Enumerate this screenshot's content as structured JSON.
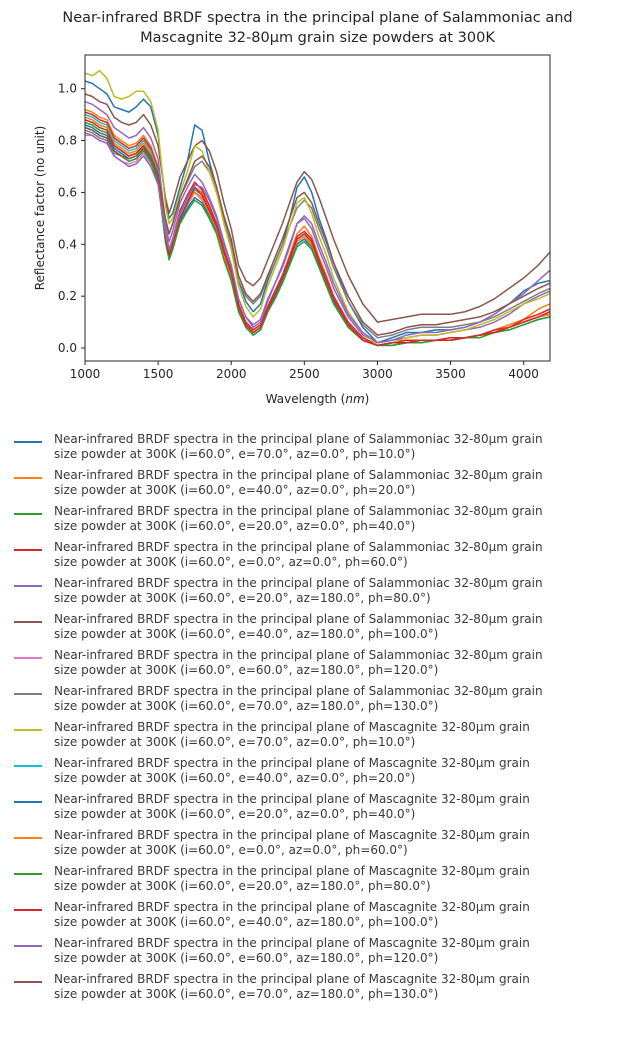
{
  "chart_data": {
    "type": "line",
    "title_lines": [
      "Near-infrared BRDF spectra in the principal plane of Salammoniac and",
      "Mascagnite 32-80µm grain size powders at 300K"
    ],
    "xlabel": "Wavelength",
    "xlabel_unit": "nm",
    "ylabel": "Reflectance factor (no unit)",
    "xlim": [
      1000,
      4180
    ],
    "ylim": [
      -0.05,
      1.13
    ],
    "xticks": [
      "1000",
      "1500",
      "2000",
      "2500",
      "3000",
      "3500",
      "4000"
    ],
    "yticks": [
      "0.0",
      "0.2",
      "0.4",
      "0.6",
      "0.8",
      "1.0"
    ],
    "grid": false,
    "legend_placement": "below",
    "x": [
      1000,
      1050,
      1100,
      1150,
      1200,
      1250,
      1300,
      1350,
      1400,
      1450,
      1500,
      1550,
      1575,
      1600,
      1650,
      1700,
      1750,
      1800,
      1850,
      1900,
      1950,
      2000,
      2050,
      2100,
      2150,
      2200,
      2250,
      2300,
      2350,
      2400,
      2450,
      2500,
      2550,
      2600,
      2650,
      2700,
      2800,
      2900,
      3000,
      3100,
      3200,
      3300,
      3400,
      3500,
      3600,
      3700,
      3800,
      3900,
      4000,
      4100,
      4180
    ],
    "series": [
      {
        "name_lines": [
          "Near-infrared BRDF spectra in the principal plane of Salammoniac 32-80µm grain",
          "size powder at 300K (i=60.0°, e=70.0°, az=0.0°, ph=10.0°)"
        ],
        "color": "#1f77b4",
        "values": [
          1.03,
          1.02,
          1.0,
          0.98,
          0.93,
          0.92,
          0.91,
          0.93,
          0.96,
          0.93,
          0.82,
          0.57,
          0.5,
          0.52,
          0.62,
          0.72,
          0.86,
          0.84,
          0.72,
          0.62,
          0.5,
          0.42,
          0.26,
          0.18,
          0.14,
          0.17,
          0.26,
          0.33,
          0.4,
          0.5,
          0.62,
          0.66,
          0.6,
          0.5,
          0.42,
          0.33,
          0.18,
          0.08,
          0.02,
          0.04,
          0.06,
          0.06,
          0.07,
          0.07,
          0.08,
          0.1,
          0.13,
          0.17,
          0.22,
          0.25,
          0.26
        ]
      },
      {
        "name_lines": [
          "Near-infrared BRDF spectra in the principal plane of Salammoniac 32-80µm grain",
          "size powder at 300K (i=60.0°, e=40.0°, az=0.0°, ph=20.0°)"
        ],
        "color": "#ff7f0e",
        "values": [
          0.92,
          0.91,
          0.89,
          0.88,
          0.82,
          0.8,
          0.78,
          0.79,
          0.82,
          0.78,
          0.7,
          0.45,
          0.38,
          0.42,
          0.52,
          0.58,
          0.62,
          0.6,
          0.54,
          0.48,
          0.38,
          0.3,
          0.17,
          0.1,
          0.07,
          0.09,
          0.16,
          0.22,
          0.28,
          0.36,
          0.44,
          0.47,
          0.43,
          0.35,
          0.28,
          0.2,
          0.1,
          0.04,
          0.01,
          0.02,
          0.03,
          0.03,
          0.03,
          0.04,
          0.04,
          0.05,
          0.07,
          0.09,
          0.11,
          0.15,
          0.17
        ]
      },
      {
        "name_lines": [
          "Near-infrared BRDF spectra in the principal plane of Salammoniac 32-80µm grain",
          "size powder at 300K (i=60.0°, e=20.0°, az=0.0°, ph=40.0°)"
        ],
        "color": "#2ca02c",
        "values": [
          0.87,
          0.86,
          0.84,
          0.83,
          0.78,
          0.76,
          0.74,
          0.75,
          0.78,
          0.74,
          0.66,
          0.42,
          0.36,
          0.4,
          0.5,
          0.56,
          0.6,
          0.58,
          0.52,
          0.46,
          0.36,
          0.28,
          0.16,
          0.09,
          0.06,
          0.08,
          0.15,
          0.21,
          0.27,
          0.34,
          0.41,
          0.43,
          0.4,
          0.33,
          0.26,
          0.19,
          0.09,
          0.03,
          0.01,
          0.02,
          0.02,
          0.03,
          0.03,
          0.03,
          0.04,
          0.05,
          0.06,
          0.08,
          0.1,
          0.12,
          0.13
        ]
      },
      {
        "name_lines": [
          "Near-infrared BRDF spectra in the principal plane of Salammoniac 32-80µm grain",
          "size powder at 300K (i=60.0°, e=0.0°, az=0.0°, ph=60.0°)"
        ],
        "color": "#d62728",
        "values": [
          0.91,
          0.9,
          0.88,
          0.87,
          0.81,
          0.79,
          0.77,
          0.78,
          0.81,
          0.77,
          0.69,
          0.45,
          0.38,
          0.42,
          0.53,
          0.59,
          0.64,
          0.61,
          0.55,
          0.48,
          0.38,
          0.3,
          0.17,
          0.1,
          0.07,
          0.09,
          0.16,
          0.22,
          0.28,
          0.35,
          0.43,
          0.45,
          0.42,
          0.34,
          0.27,
          0.2,
          0.1,
          0.04,
          0.01,
          0.02,
          0.03,
          0.03,
          0.03,
          0.04,
          0.04,
          0.05,
          0.07,
          0.08,
          0.11,
          0.13,
          0.15
        ]
      },
      {
        "name_lines": [
          "Near-infrared BRDF spectra in the principal plane of Salammoniac 32-80µm grain",
          "size powder at 300K (i=60.0°, e=20.0°, az=180.0°, ph=80.0°)"
        ],
        "color": "#9467bd",
        "values": [
          0.95,
          0.94,
          0.92,
          0.9,
          0.85,
          0.83,
          0.81,
          0.82,
          0.85,
          0.81,
          0.73,
          0.48,
          0.41,
          0.45,
          0.56,
          0.62,
          0.67,
          0.64,
          0.58,
          0.51,
          0.41,
          0.32,
          0.19,
          0.12,
          0.08,
          0.1,
          0.18,
          0.25,
          0.31,
          0.39,
          0.48,
          0.5,
          0.46,
          0.38,
          0.31,
          0.23,
          0.12,
          0.05,
          0.02,
          0.03,
          0.04,
          0.05,
          0.05,
          0.06,
          0.07,
          0.08,
          0.1,
          0.13,
          0.17,
          0.2,
          0.22
        ]
      },
      {
        "name_lines": [
          "Near-infrared BRDF spectra in the principal plane of Salammoniac 32-80µm grain",
          "size powder at 300K (i=60.0°, e=40.0°, az=180.0°, ph=100.0°)"
        ],
        "color": "#8c564b",
        "values": [
          0.98,
          0.97,
          0.95,
          0.94,
          0.89,
          0.87,
          0.86,
          0.87,
          0.9,
          0.86,
          0.78,
          0.58,
          0.52,
          0.56,
          0.66,
          0.72,
          0.78,
          0.8,
          0.76,
          0.68,
          0.56,
          0.46,
          0.32,
          0.26,
          0.24,
          0.27,
          0.34,
          0.41,
          0.48,
          0.56,
          0.64,
          0.68,
          0.65,
          0.58,
          0.5,
          0.42,
          0.28,
          0.17,
          0.1,
          0.11,
          0.12,
          0.13,
          0.13,
          0.13,
          0.14,
          0.16,
          0.19,
          0.23,
          0.27,
          0.32,
          0.37
        ]
      },
      {
        "name_lines": [
          "Near-infrared BRDF spectra in the principal plane of Salammoniac 32-80µm grain",
          "size powder at 300K (i=60.0°, e=60.0°, az=180.0°, ph=120.0°)"
        ],
        "color": "#e377c2",
        "values": [
          0.82,
          0.82,
          0.8,
          0.79,
          0.74,
          0.72,
          0.71,
          0.72,
          0.75,
          0.71,
          0.64,
          0.42,
          0.35,
          0.4,
          0.5,
          0.55,
          0.6,
          0.57,
          0.51,
          0.45,
          0.35,
          0.27,
          0.15,
          0.09,
          0.06,
          0.08,
          0.15,
          0.2,
          0.26,
          0.33,
          0.4,
          0.42,
          0.39,
          0.32,
          0.25,
          0.18,
          0.09,
          0.03,
          0.01,
          0.02,
          0.02,
          0.03,
          0.03,
          0.03,
          0.04,
          0.05,
          0.06,
          0.08,
          0.1,
          0.12,
          0.14
        ]
      },
      {
        "name_lines": [
          "Near-infrared BRDF spectra in the principal plane of Salammoniac 32-80µm grain",
          "size powder at 300K (i=60.0°, e=70.0°, az=180.0°, ph=130.0°)"
        ],
        "color": "#7f7f7f",
        "values": [
          0.84,
          0.83,
          0.81,
          0.8,
          0.75,
          0.74,
          0.72,
          0.73,
          0.76,
          0.73,
          0.66,
          0.5,
          0.44,
          0.48,
          0.58,
          0.64,
          0.7,
          0.72,
          0.68,
          0.6,
          0.49,
          0.4,
          0.26,
          0.2,
          0.17,
          0.2,
          0.27,
          0.33,
          0.4,
          0.47,
          0.54,
          0.57,
          0.54,
          0.46,
          0.39,
          0.31,
          0.18,
          0.09,
          0.04,
          0.05,
          0.07,
          0.08,
          0.08,
          0.08,
          0.09,
          0.1,
          0.12,
          0.15,
          0.18,
          0.21,
          0.23
        ]
      },
      {
        "name_lines": [
          "Near-infrared BRDF spectra in the principal plane of Mascagnite 32-80µm grain",
          "size powder at 300K (i=60.0°, e=70.0°, az=0.0°, ph=10.0°)"
        ],
        "color": "#bcbd22",
        "values": [
          1.06,
          1.05,
          1.07,
          1.04,
          0.97,
          0.96,
          0.97,
          0.99,
          0.99,
          0.95,
          0.84,
          0.55,
          0.48,
          0.5,
          0.6,
          0.68,
          0.78,
          0.76,
          0.68,
          0.6,
          0.48,
          0.38,
          0.24,
          0.16,
          0.12,
          0.15,
          0.24,
          0.31,
          0.38,
          0.47,
          0.56,
          0.58,
          0.52,
          0.43,
          0.36,
          0.27,
          0.14,
          0.06,
          0.01,
          0.02,
          0.04,
          0.05,
          0.05,
          0.06,
          0.07,
          0.09,
          0.11,
          0.14,
          0.17,
          0.19,
          0.21
        ]
      },
      {
        "name_lines": [
          "Near-infrared BRDF spectra in the principal plane of Mascagnite 32-80µm grain",
          "size powder at 300K (i=60.0°, e=40.0°, az=0.0°, ph=20.0°)"
        ],
        "color": "#17becf",
        "values": [
          0.9,
          0.89,
          0.87,
          0.86,
          0.8,
          0.78,
          0.76,
          0.77,
          0.8,
          0.76,
          0.68,
          0.44,
          0.37,
          0.41,
          0.51,
          0.57,
          0.61,
          0.59,
          0.53,
          0.47,
          0.37,
          0.29,
          0.16,
          0.09,
          0.06,
          0.08,
          0.15,
          0.21,
          0.27,
          0.34,
          0.42,
          0.44,
          0.41,
          0.33,
          0.26,
          0.19,
          0.09,
          0.03,
          0.01,
          0.02,
          0.02,
          0.03,
          0.03,
          0.03,
          0.04,
          0.05,
          0.06,
          0.08,
          0.1,
          0.12,
          0.13
        ]
      },
      {
        "name_lines": [
          "Near-infrared BRDF spectra in the principal plane of Mascagnite 32-80µm grain",
          "size powder at 300K (i=60.0°, e=20.0°, az=0.0°, ph=40.0°)"
        ],
        "color": "#1f77b4",
        "values": [
          0.86,
          0.85,
          0.83,
          0.82,
          0.77,
          0.75,
          0.73,
          0.74,
          0.77,
          0.73,
          0.65,
          0.42,
          0.35,
          0.39,
          0.49,
          0.54,
          0.58,
          0.56,
          0.51,
          0.45,
          0.35,
          0.27,
          0.15,
          0.08,
          0.05,
          0.07,
          0.14,
          0.2,
          0.26,
          0.33,
          0.4,
          0.42,
          0.39,
          0.32,
          0.25,
          0.18,
          0.08,
          0.03,
          0.01,
          0.01,
          0.02,
          0.02,
          0.03,
          0.03,
          0.04,
          0.05,
          0.06,
          0.07,
          0.09,
          0.11,
          0.12
        ]
      },
      {
        "name_lines": [
          "Near-infrared BRDF spectra in the principal plane of Mascagnite 32-80µm grain",
          "size powder at 300K (i=60.0°, e=0.0°, az=0.0°, ph=60.0°)"
        ],
        "color": "#ff7f0e",
        "values": [
          0.89,
          0.88,
          0.86,
          0.85,
          0.79,
          0.77,
          0.75,
          0.76,
          0.79,
          0.75,
          0.67,
          0.43,
          0.36,
          0.4,
          0.5,
          0.56,
          0.6,
          0.58,
          0.52,
          0.46,
          0.36,
          0.28,
          0.16,
          0.09,
          0.06,
          0.08,
          0.15,
          0.21,
          0.27,
          0.34,
          0.41,
          0.43,
          0.4,
          0.33,
          0.26,
          0.19,
          0.09,
          0.03,
          0.01,
          0.02,
          0.02,
          0.03,
          0.03,
          0.03,
          0.04,
          0.05,
          0.06,
          0.08,
          0.1,
          0.12,
          0.13
        ]
      },
      {
        "name_lines": [
          "Near-infrared BRDF spectra in the principal plane of Mascagnite 32-80µm grain",
          "size powder at 300K (i=60.0°, e=20.0°, az=180.0°, ph=80.0°)"
        ],
        "color": "#2ca02c",
        "values": [
          0.85,
          0.84,
          0.82,
          0.81,
          0.76,
          0.74,
          0.72,
          0.73,
          0.76,
          0.72,
          0.64,
          0.41,
          0.34,
          0.38,
          0.48,
          0.53,
          0.57,
          0.55,
          0.5,
          0.44,
          0.34,
          0.26,
          0.14,
          0.08,
          0.05,
          0.07,
          0.14,
          0.19,
          0.25,
          0.32,
          0.39,
          0.41,
          0.38,
          0.31,
          0.24,
          0.17,
          0.08,
          0.03,
          0.01,
          0.01,
          0.02,
          0.02,
          0.03,
          0.03,
          0.04,
          0.04,
          0.06,
          0.07,
          0.09,
          0.11,
          0.12
        ]
      },
      {
        "name_lines": [
          "Near-infrared BRDF spectra in the principal plane of Mascagnite 32-80µm grain",
          "size powder at 300K (i=60.0°, e=40.0°, az=180.0°, ph=100.0°)"
        ],
        "color": "#d62728",
        "values": [
          0.88,
          0.87,
          0.85,
          0.84,
          0.78,
          0.76,
          0.74,
          0.75,
          0.78,
          0.74,
          0.66,
          0.43,
          0.36,
          0.4,
          0.5,
          0.56,
          0.62,
          0.59,
          0.53,
          0.47,
          0.37,
          0.29,
          0.16,
          0.09,
          0.06,
          0.08,
          0.15,
          0.21,
          0.27,
          0.34,
          0.42,
          0.44,
          0.41,
          0.33,
          0.26,
          0.19,
          0.09,
          0.03,
          0.01,
          0.02,
          0.02,
          0.03,
          0.03,
          0.03,
          0.04,
          0.05,
          0.06,
          0.08,
          0.1,
          0.12,
          0.14
        ]
      },
      {
        "name_lines": [
          "Near-infrared BRDF spectra in the principal plane of Mascagnite 32-80µm grain",
          "size powder at 300K (i=60.0°, e=60.0°, az=180.0°, ph=120.0°)"
        ],
        "color": "#9467bd",
        "values": [
          0.83,
          0.82,
          0.8,
          0.79,
          0.74,
          0.72,
          0.7,
          0.71,
          0.74,
          0.7,
          0.63,
          0.44,
          0.38,
          0.42,
          0.52,
          0.58,
          0.63,
          0.62,
          0.57,
          0.5,
          0.4,
          0.32,
          0.19,
          0.12,
          0.09,
          0.11,
          0.19,
          0.25,
          0.32,
          0.4,
          0.48,
          0.51,
          0.48,
          0.4,
          0.33,
          0.25,
          0.13,
          0.06,
          0.02,
          0.03,
          0.05,
          0.06,
          0.06,
          0.07,
          0.08,
          0.1,
          0.13,
          0.17,
          0.21,
          0.26,
          0.3
        ]
      },
      {
        "name_lines": [
          "Near-infrared BRDF spectra in the principal plane of Mascagnite 32-80µm grain",
          "size powder at 300K (i=60.0°, e=70.0°, az=180.0°, ph=130.0°)"
        ],
        "color": "#8c564b",
        "values": [
          0.85,
          0.84,
          0.82,
          0.81,
          0.76,
          0.74,
          0.73,
          0.74,
          0.77,
          0.74,
          0.67,
          0.5,
          0.44,
          0.48,
          0.58,
          0.65,
          0.72,
          0.74,
          0.7,
          0.62,
          0.51,
          0.42,
          0.28,
          0.21,
          0.18,
          0.21,
          0.28,
          0.35,
          0.42,
          0.5,
          0.58,
          0.6,
          0.56,
          0.48,
          0.41,
          0.33,
          0.2,
          0.1,
          0.05,
          0.06,
          0.08,
          0.09,
          0.09,
          0.1,
          0.11,
          0.12,
          0.14,
          0.17,
          0.2,
          0.23,
          0.25
        ]
      }
    ]
  }
}
